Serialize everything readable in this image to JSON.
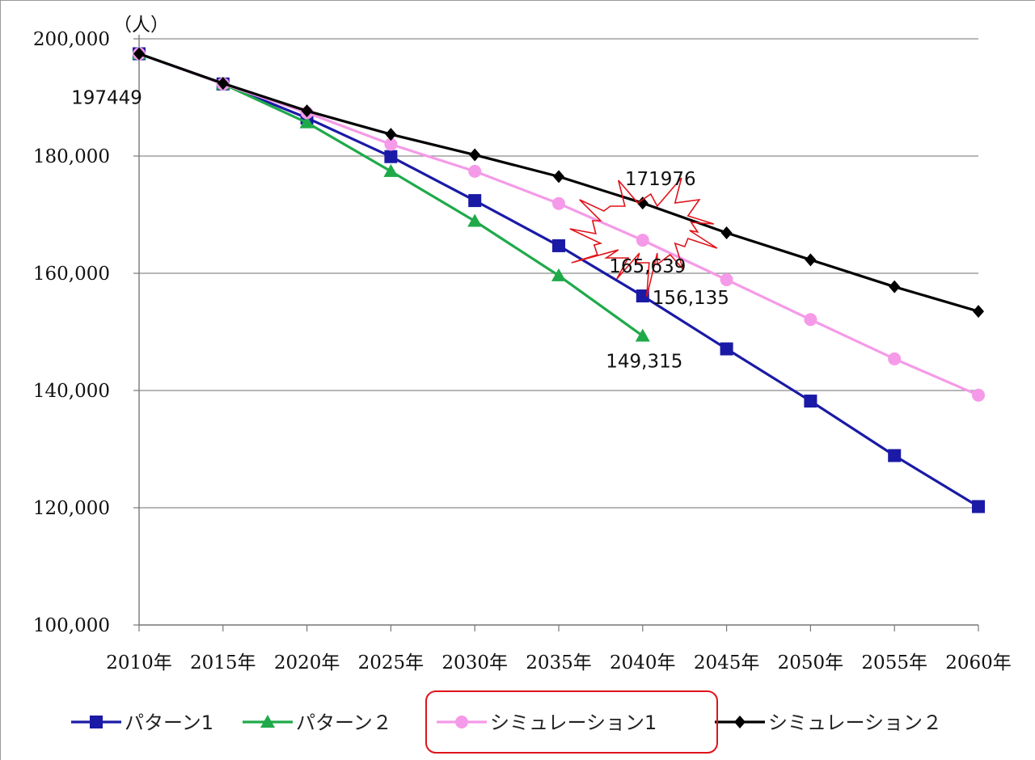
{
  "chart_data": {
    "type": "line",
    "y_unit": "（人）",
    "x": [
      "2010年",
      "2015年",
      "2020年",
      "2025年",
      "2030年",
      "2035年",
      "2040年",
      "2045年",
      "2050年",
      "2055年",
      "2060年"
    ],
    "ylim": [
      100000,
      200000
    ],
    "yticks": [
      100000,
      120000,
      140000,
      160000,
      180000,
      200000
    ],
    "ytick_labels": [
      "100,000",
      "120,000",
      "140,000",
      "160,000",
      "180,000",
      "200,000"
    ],
    "grid": true,
    "series": [
      {
        "name": "パターン1",
        "color": "#1a1aa6",
        "marker": "square",
        "values": [
          197449,
          192300,
          186500,
          179900,
          172400,
          164700,
          156135,
          147100,
          138200,
          128900,
          120200
        ]
      },
      {
        "name": "パターン２",
        "color": "#1faa4a",
        "marker": "triangle",
        "values": [
          197449,
          192300,
          185700,
          177400,
          168900,
          159600,
          149315,
          null,
          null,
          null,
          null
        ]
      },
      {
        "name": "シミュレーション1",
        "color": "#f59ae8",
        "marker": "circle",
        "values": [
          197449,
          192300,
          187400,
          182000,
          177400,
          171900,
          165639,
          158900,
          152100,
          145400,
          139200
        ]
      },
      {
        "name": "シミュレーション２",
        "color": "#000000",
        "marker": "diamond",
        "values": [
          197449,
          192400,
          187700,
          183700,
          180200,
          176500,
          171976,
          166900,
          162300,
          157700,
          153500
        ]
      }
    ],
    "data_labels": [
      {
        "text": "197449",
        "series": 3,
        "index": 0
      },
      {
        "text": "171976",
        "series": 3,
        "index": 6
      },
      {
        "text": "165,639",
        "series": 2,
        "index": 6
      },
      {
        "text": "156,135",
        "series": 0,
        "index": 6
      },
      {
        "text": "149,315",
        "series": 1,
        "index": 6
      }
    ],
    "highlight_starburst_color": "#e0131a",
    "legend_highlight_color": "#e0131a",
    "legend_placement": "bottom"
  }
}
